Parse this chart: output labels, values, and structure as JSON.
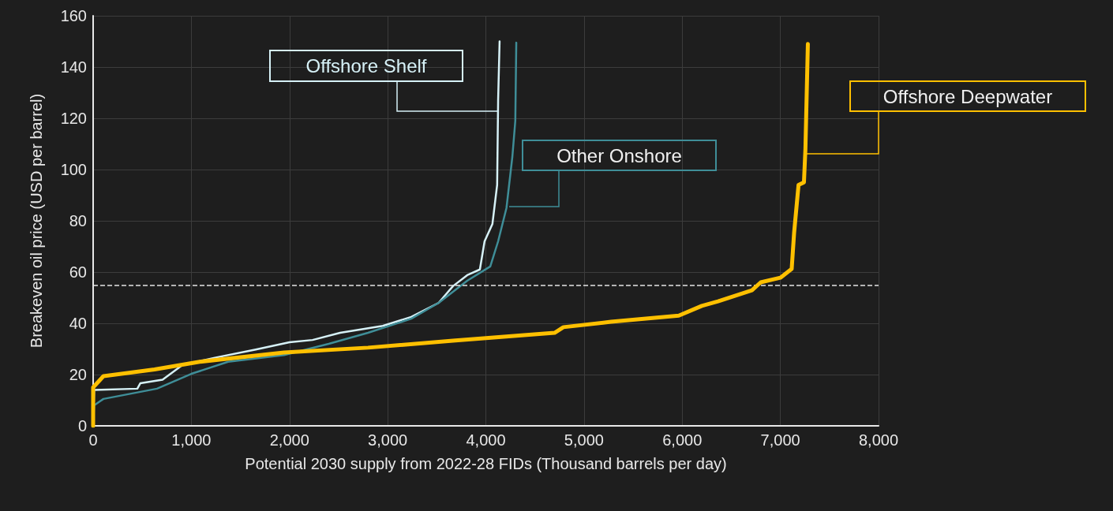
{
  "chart_data": {
    "type": "line",
    "xlabel": "Potential 2030 supply from 2022-28 FIDs (Thousand barrels per day)",
    "ylabel": "Breakeven oil price (USD per barrel)",
    "xlim": [
      0,
      8000
    ],
    "xticks": [
      0,
      {
        "value": 1000,
        "label": "1,000"
      },
      {
        "value": 2000,
        "label": "2,000"
      },
      {
        "value": 3000,
        "label": "3,000"
      },
      {
        "value": 4000,
        "label": "4,000"
      },
      {
        "value": 5000,
        "label": "5,000"
      },
      {
        "value": 6000,
        "label": "6,000"
      },
      {
        "value": 7000,
        "label": "7,000"
      },
      {
        "value": 8000,
        "label": "8,000"
      }
    ],
    "ylim": [
      0,
      160
    ],
    "yticks": [
      0,
      20,
      40,
      60,
      80,
      100,
      120,
      140,
      160
    ],
    "grid": true,
    "marker": "none",
    "ref_lines": [
      {
        "axis": "y",
        "value": 55,
        "color": "#e6e6e6",
        "line_style": "dashed"
      }
    ],
    "series": [
      {
        "name": "Offshore Shelf",
        "color": "#d6f1f7",
        "x": [
          0,
          10,
          450,
          480,
          707,
          908,
          1230,
          1656,
          2000,
          2235,
          2516,
          2950,
          3240,
          3520,
          3665,
          3810,
          3939,
          3987,
          4067,
          4115,
          4125,
          4140
        ],
        "values": [
          0,
          14,
          14.5,
          16.6,
          18,
          23.7,
          26.5,
          29.8,
          32.6,
          33.5,
          36.3,
          39,
          42.5,
          48,
          54.5,
          58.8,
          61,
          72,
          78.8,
          94,
          127,
          150
        ]
      },
      {
        "name": "Other Onshore",
        "color": "#3f8e98",
        "x": [
          0,
          10,
          105,
          650,
          1000,
          1375,
          1945,
          2400,
          2800,
          3240,
          3520,
          3810,
          4045,
          4125,
          4210,
          4270,
          4300,
          4310
        ],
        "values": [
          0,
          8,
          10.5,
          14.5,
          20.3,
          25,
          27.6,
          32,
          36.3,
          41.8,
          48,
          56.6,
          62.2,
          72,
          85,
          105,
          119,
          149.5
        ]
      },
      {
        "name": "Offshore Deepwater",
        "color": "#ffc000",
        "x": [
          0,
          0,
          105,
          625,
          1085,
          1945,
          2800,
          3665,
          4700,
          4790,
          5275,
          5965,
          6200,
          6365,
          6710,
          6800,
          7000,
          7115,
          7140,
          7185,
          7240,
          7255,
          7280
        ],
        "values": [
          0,
          15,
          19.4,
          22,
          25,
          28.6,
          30.5,
          33.2,
          36.3,
          38.5,
          40.6,
          43,
          46.8,
          48.6,
          52.9,
          56,
          57.8,
          61.2,
          75.4,
          94,
          95,
          108,
          149
        ]
      }
    ]
  }
}
